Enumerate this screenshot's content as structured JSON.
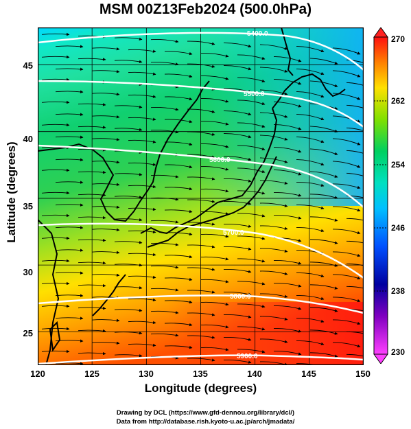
{
  "title": "MSM 00Z13Feb2024 (500.0hPa)",
  "x_axis": {
    "label": "Longitude (degrees)",
    "ticks": [
      "120",
      "125",
      "130",
      "135",
      "140",
      "145",
      "150"
    ],
    "range": [
      120,
      150
    ]
  },
  "y_axis": {
    "label": "Latitude  (degrees)",
    "ticks": [
      "25",
      "30",
      "35",
      "40",
      "45"
    ],
    "range": [
      22.5,
      47.8
    ]
  },
  "colorbar": {
    "ticks": [
      "270",
      "262",
      "254",
      "246",
      "238",
      "230"
    ],
    "range": [
      230,
      270
    ],
    "colors": [
      "#ff40ff",
      "#0000a0",
      "#0070ff",
      "#00e0ff",
      "#00d060",
      "#90e000",
      "#ffe000",
      "#ff8000",
      "#ff1010"
    ]
  },
  "height_contours": [
    {
      "label": "5400.0"
    },
    {
      "label": "5500.0"
    },
    {
      "label": "5600.0"
    },
    {
      "label": "5700.0"
    },
    {
      "label": "5800.0"
    },
    {
      "label": "5900.0"
    }
  ],
  "credits": {
    "line1": "Drawing by DCL (https://www.gfd-dennou.org/library/dcl/)",
    "line2": "Data from http://database.rish.kyoto-u.ac.jp/arch/jmadata/"
  },
  "colors": {
    "coast": "#000000",
    "streamline": "#000000",
    "contour": "#ffffff"
  }
}
